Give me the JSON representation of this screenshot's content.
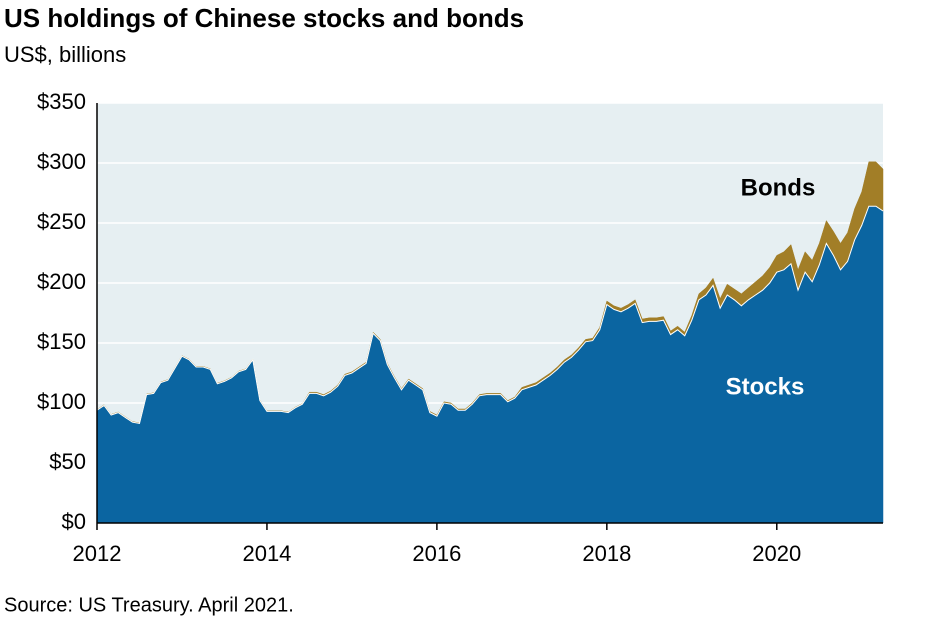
{
  "chart_data": {
    "type": "stacked-area",
    "title": "US holdings of Chinese stocks and bonds",
    "subtitle": "US$, billions",
    "source": "Source: US Treasury. April 2021.",
    "categories": [
      "2012",
      null,
      null,
      null,
      null,
      null,
      null,
      null,
      null,
      null,
      null,
      null,
      null,
      null,
      null,
      null,
      null,
      null,
      null,
      null,
      null,
      null,
      null,
      null,
      "2014",
      null,
      null,
      null,
      null,
      null,
      null,
      null,
      null,
      null,
      null,
      null,
      null,
      null,
      null,
      null,
      null,
      null,
      null,
      null,
      null,
      null,
      null,
      null,
      "2016",
      null,
      null,
      null,
      null,
      null,
      null,
      null,
      null,
      null,
      null,
      null,
      null,
      null,
      null,
      null,
      null,
      null,
      null,
      null,
      null,
      null,
      null,
      null,
      "2018",
      null,
      null,
      null,
      null,
      null,
      null,
      null,
      null,
      null,
      null,
      null,
      null,
      null,
      null,
      null,
      null,
      null,
      null,
      null,
      null,
      null,
      null,
      null,
      "2020",
      null,
      null,
      null,
      null,
      null,
      null,
      null,
      null,
      null,
      null,
      null,
      null,
      null,
      null,
      null
    ],
    "series": [
      {
        "name": "Stocks",
        "color": "#0b65a1",
        "values": [
          94,
          98,
          90,
          92,
          88,
          84,
          83,
          107,
          108,
          117,
          119,
          129,
          139,
          136,
          130,
          130,
          128,
          116,
          118,
          121,
          126,
          128,
          136,
          102,
          93,
          93,
          93,
          92,
          96,
          99,
          108,
          108,
          106,
          109,
          114,
          123,
          125,
          129,
          133,
          158,
          152,
          132,
          121,
          111,
          119,
          115,
          111,
          92,
          89,
          100,
          99,
          94,
          94,
          99,
          106,
          107,
          107,
          107,
          101,
          104,
          111,
          113,
          115,
          119,
          123,
          128,
          134,
          138,
          144,
          151,
          152,
          161,
          182,
          178,
          176,
          179,
          183,
          167,
          168,
          168,
          169,
          157,
          161,
          156,
          169,
          186,
          190,
          198,
          179,
          190,
          186,
          181,
          186,
          190,
          194,
          200,
          209,
          211,
          216,
          194,
          209,
          201,
          215,
          233,
          223,
          211,
          218,
          236,
          248,
          264,
          264,
          260
        ]
      },
      {
        "name": "Bonds",
        "color": "#a27e27",
        "values": [
          0.5,
          0.5,
          0.5,
          0.5,
          0.5,
          0.5,
          0.5,
          0.5,
          0.5,
          0.5,
          0.5,
          0.5,
          0.5,
          0.5,
          0.5,
          0.5,
          0.5,
          0.5,
          0.5,
          0.5,
          0.5,
          0.5,
          0.5,
          0.5,
          0.5,
          0.5,
          0.5,
          0.5,
          0.5,
          0.5,
          1,
          1,
          1,
          1,
          1,
          1,
          1,
          1,
          1,
          1,
          1,
          1,
          1,
          1,
          1,
          1,
          1,
          1,
          1,
          1,
          1,
          1,
          1,
          1,
          1,
          1,
          1,
          1,
          1,
          1,
          2,
          2,
          2,
          2,
          2,
          2,
          2,
          2,
          2,
          2,
          2,
          2,
          3,
          3,
          3,
          3,
          3,
          3,
          3,
          3,
          3,
          3,
          3,
          3,
          4,
          5,
          6,
          6,
          8,
          9,
          9,
          10,
          10,
          11,
          12,
          13,
          14,
          15,
          16,
          17,
          17,
          18,
          18,
          19,
          20,
          22,
          24,
          26,
          28,
          37,
          37,
          35
        ]
      }
    ],
    "ylim": [
      0,
      350
    ],
    "yticks": [
      {
        "value": 0,
        "label": "$0"
      },
      {
        "value": 50,
        "label": "$50"
      },
      {
        "value": 100,
        "label": "$100"
      },
      {
        "value": 150,
        "label": "$150"
      },
      {
        "value": 200,
        "label": "$200"
      },
      {
        "value": 250,
        "label": "$250"
      },
      {
        "value": 300,
        "label": "$300"
      },
      {
        "value": 350,
        "label": "$350"
      }
    ],
    "grid": true
  }
}
